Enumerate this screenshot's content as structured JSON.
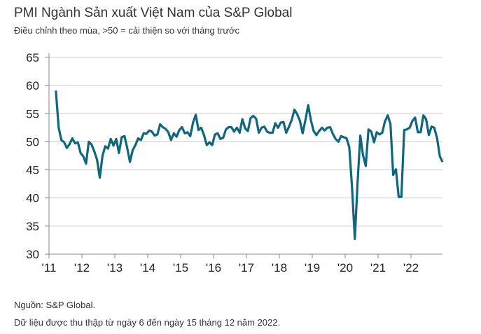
{
  "title": "PMI Ngành Sản xuất Việt Nam của S&P Global",
  "subtitle": "Điều chỉnh theo mùa, >50 = cải thiện so với tháng trước",
  "footer": {
    "source": "Nguồn: S&P Global.",
    "note": "Dữ liệu được thu thập từ ngày 6 đến ngày 15 tháng 12 năm 2022."
  },
  "chart_data": {
    "type": "line",
    "title": "PMI Ngành Sản xuất Việt Nam của S&P Global",
    "xlabel": "",
    "ylabel": "",
    "ylim": [
      30,
      65
    ],
    "yticks": [
      30,
      35,
      40,
      45,
      50,
      55,
      60,
      65
    ],
    "xtick_labels": [
      "'11",
      "'12",
      "'13",
      "'14",
      "'15",
      "'16",
      "'17",
      "'18",
      "'19",
      "'20",
      "'21",
      "'22"
    ],
    "grid": true,
    "color": "#0f6680",
    "start": "2011-03",
    "end": "2022-12",
    "values": [
      59.1,
      52.5,
      50.3,
      49.9,
      48.9,
      49.6,
      50.6,
      49.7,
      49.9,
      48.0,
      47.4,
      46.1,
      50.0,
      49.5,
      48.3,
      46.8,
      43.6,
      47.5,
      49.2,
      48.8,
      50.5,
      49.3,
      50.5,
      48.0,
      50.8,
      51.0,
      48.9,
      46.4,
      48.5,
      49.4,
      50.6,
      50.3,
      51.5,
      51.4,
      52.0,
      51.8,
      51.1,
      51.3,
      53.1,
      52.6,
      52.3,
      51.7,
      50.3,
      51.5,
      50.9,
      52.1,
      52.6,
      51.5,
      51.7,
      51.0,
      53.4,
      54.8,
      52.1,
      52.5,
      51.2,
      49.4,
      49.9,
      49.4,
      51.3,
      51.5,
      50.5,
      50.7,
      52.2,
      52.6,
      52.6,
      51.8,
      52.5,
      51.6,
      54.0,
      52.4,
      51.9,
      54.2,
      54.6,
      54.1,
      51.6,
      52.5,
      52.7,
      51.8,
      51.6,
      51.6,
      53.3,
      52.5,
      53.4,
      53.5,
      51.6,
      52.7,
      53.9,
      55.7,
      54.9,
      53.7,
      51.5,
      53.9,
      56.5,
      53.8,
      51.9,
      51.2,
      51.9,
      52.5,
      52.0,
      52.5,
      52.6,
      51.4,
      50.5,
      50.0,
      51.0,
      50.8,
      50.6,
      49.0,
      41.9,
      32.7,
      42.7,
      51.1,
      47.6,
      45.7,
      52.2,
      51.8,
      49.9,
      51.7,
      51.3,
      51.6,
      53.6,
      54.7,
      53.1,
      44.1,
      45.1,
      40.2,
      40.2,
      52.1,
      52.2,
      52.5,
      53.7,
      54.3,
      51.7,
      51.7,
      54.7,
      54.0,
      51.2,
      52.7,
      52.5,
      50.6,
      47.4,
      46.4
    ]
  }
}
